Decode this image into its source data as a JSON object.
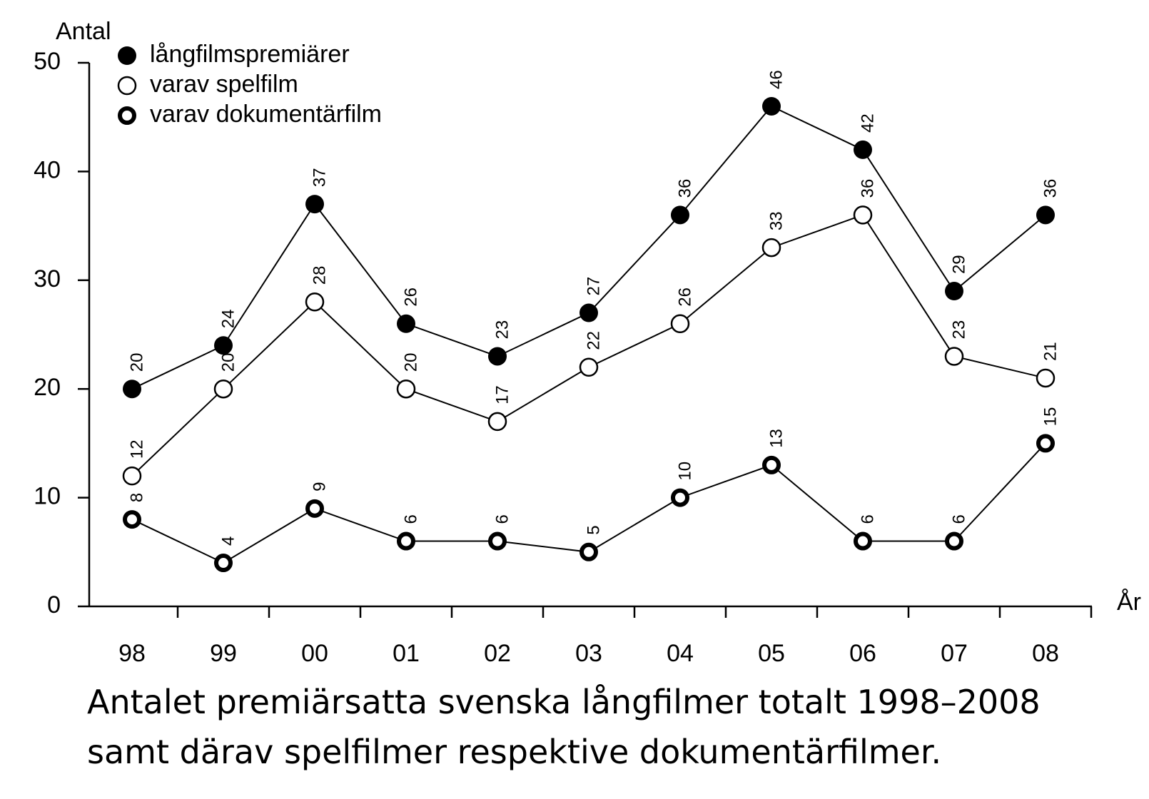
{
  "chart_data": {
    "type": "line",
    "y_label": "Antal",
    "x_label": "År",
    "categories": [
      "98",
      "99",
      "00",
      "01",
      "02",
      "03",
      "04",
      "05",
      "06",
      "07",
      "08"
    ],
    "series": [
      {
        "name": "långfilmspremiärer",
        "color": "#000000",
        "marker": "filled",
        "values": [
          20,
          24,
          37,
          26,
          23,
          27,
          36,
          46,
          42,
          29,
          36
        ]
      },
      {
        "name": "varav spelfilm",
        "color": "#000000",
        "marker": "open",
        "values": [
          12,
          20,
          28,
          20,
          17,
          22,
          26,
          33,
          36,
          23,
          21
        ]
      },
      {
        "name": "varav dokumentärfilm",
        "color": "#000000",
        "marker": "ring",
        "values": [
          8,
          4,
          9,
          6,
          6,
          5,
          10,
          13,
          6,
          6,
          15
        ]
      }
    ],
    "ylim": [
      0,
      50
    ],
    "yticks": [
      0,
      10,
      20,
      30,
      40,
      50
    ],
    "grid": false,
    "legend": "top-left",
    "caption": [
      "Antalet premiärsatta svenska långfilmer totalt 1998–2008",
      "samt därav spelfilmer respektive dokumentärfilmer."
    ]
  }
}
